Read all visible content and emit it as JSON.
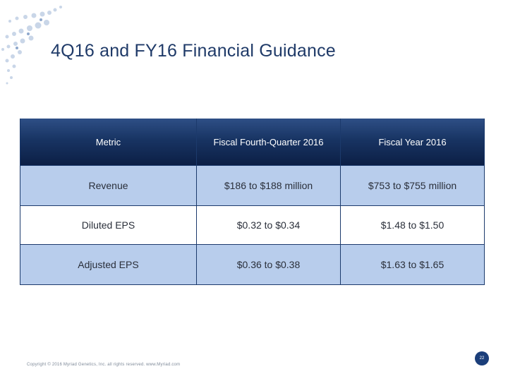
{
  "slide": {
    "title": "4Q16 and FY16 Financial Guidance",
    "footer": "Copyright © 2016 Myriad Genetics, Inc. all rights reserved. www.Myriad.com",
    "page_number": "22"
  },
  "table": {
    "headers": [
      "Metric",
      "Fiscal Fourth-Quarter 2016",
      "Fiscal Year 2016"
    ],
    "rows": [
      [
        "Revenue",
        "$186 to $188 million",
        "$753 to $755 million"
      ],
      [
        "Diluted EPS",
        "$0.32 to $0.34",
        "$1.48 to $1.50"
      ],
      [
        "Adjusted EPS",
        "$0.36 to $0.38",
        "$1.63 to $1.65"
      ]
    ]
  },
  "colors": {
    "header_dark": "#0c1f45",
    "row_blue": "#b8cdec",
    "title": "#1f3a68",
    "badge": "#1b3e7a"
  }
}
